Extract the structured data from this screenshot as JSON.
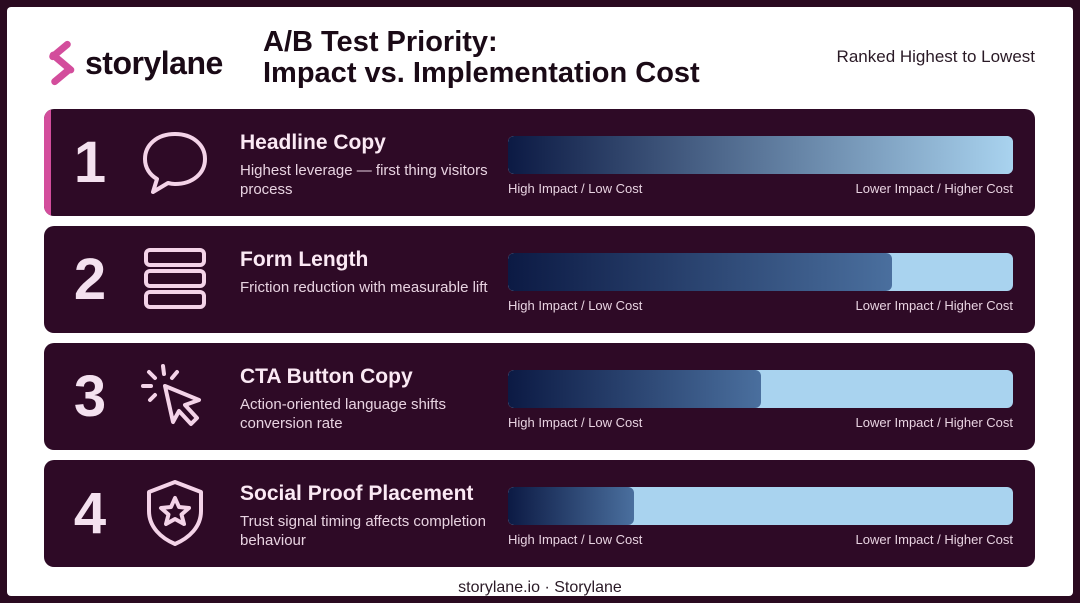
{
  "brand": {
    "name": "storylane",
    "accent_color": "#d34d9c"
  },
  "header": {
    "title_line1": "A/B Test Priority:",
    "title_line2": "Impact vs. Implementation Cost",
    "subtitle": "Ranked Highest to Lowest"
  },
  "items": [
    {
      "rank": "1",
      "icon": "speech-bubble-icon",
      "title": "Headline Copy",
      "description": "Highest leverage — first thing visitors process",
      "impact_fraction": 1.0,
      "left_label": "High Impact / Low Cost",
      "right_label": "Lower Impact / Higher Cost"
    },
    {
      "rank": "2",
      "icon": "form-fields-icon",
      "title": "Form Length",
      "description": "Friction reduction with measurable lift",
      "impact_fraction": 0.76,
      "left_label": "High Impact / Low Cost",
      "right_label": "Lower Impact / Higher Cost"
    },
    {
      "rank": "3",
      "icon": "cursor-click-icon",
      "title": "CTA Button Copy",
      "description": "Action-oriented language shifts conversion rate",
      "impact_fraction": 0.5,
      "left_label": "High Impact / Low Cost",
      "right_label": "Lower Impact / Higher Cost"
    },
    {
      "rank": "4",
      "icon": "shield-star-icon",
      "title": "Social Proof Placement",
      "description": "Trust signal timing affects completion behaviour",
      "impact_fraction": 0.25,
      "left_label": "High Impact / Low Cost",
      "right_label": "Lower Impact / Higher Cost"
    }
  ],
  "footer": {
    "text": "storylane.io · Storylane"
  }
}
